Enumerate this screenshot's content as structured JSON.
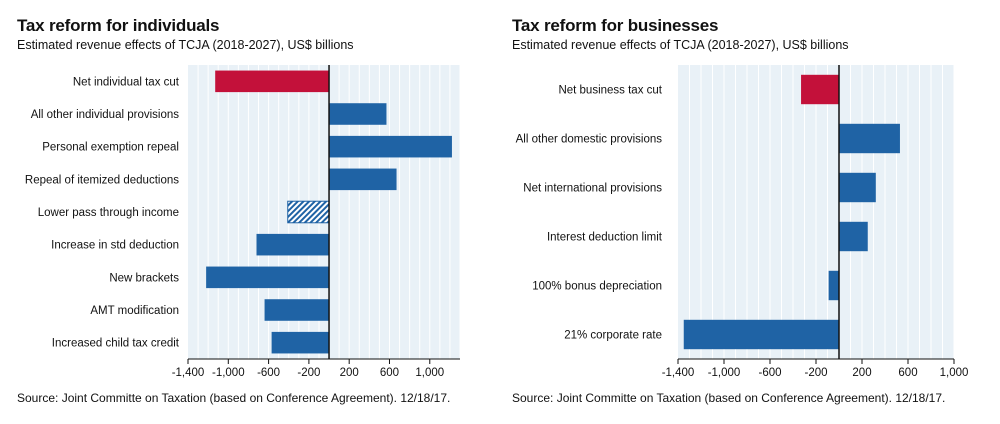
{
  "colors": {
    "bar": "#1f63a5",
    "negative_highlight": "#c3113a",
    "plot_bg": "#e9f1f7",
    "grid": "#ffffff",
    "hatch_bg": "#ffffff"
  },
  "chart_data": [
    {
      "type": "bar",
      "orientation": "horizontal",
      "title": "Tax reform for individuals",
      "subtitle": "Estimated revenue effects of TCJA (2018-2027), US$ billions",
      "source": "Source: Joint Committe on Taxation (based on Conference Agreement). 12/18/17.",
      "categories": [
        "Net individual tax cut",
        "All other individual provisions",
        "Personal exemption repeal",
        "Repeal of itemized deductions",
        "Lower pass through income",
        "Increase in std deduction",
        "New brackets",
        "AMT modification",
        "Increased child tax credit"
      ],
      "values": [
        -1130,
        570,
        1220,
        670,
        -410,
        -720,
        -1220,
        -640,
        -570
      ],
      "bar_styles": [
        "highlight",
        "normal",
        "normal",
        "normal",
        "hatched",
        "normal",
        "normal",
        "normal",
        "normal"
      ],
      "xlim": [
        -1400,
        1300
      ],
      "xticks": [
        -1400,
        -1000,
        -600,
        -200,
        200,
        600,
        1000
      ],
      "xtick_labels": [
        "-1,400",
        "-1,000",
        "-600",
        "-200",
        "200",
        "600",
        "1,000"
      ],
      "grid": true
    },
    {
      "type": "bar",
      "orientation": "horizontal",
      "title": "Tax reform for businesses",
      "subtitle": "Estimated revenue effects of TCJA (2018-2027), US$ billions",
      "source": "Source: Joint Committe on Taxation (based on Conference Agreement). 12/18/17.",
      "categories": [
        "Net business tax cut",
        "All other domestic provisions",
        "Net international provisions",
        "Interest deduction limit",
        "100% bonus depreciation",
        "21% corporate rate"
      ],
      "values": [
        -330,
        530,
        320,
        250,
        -90,
        -1350
      ],
      "bar_styles": [
        "highlight",
        "normal",
        "normal",
        "normal",
        "normal",
        "normal"
      ],
      "xlim": [
        -1400,
        1000
      ],
      "xticks": [
        -1400,
        -1000,
        -600,
        -200,
        200,
        600,
        1000
      ],
      "xtick_labels": [
        "-1,400",
        "-1,000",
        "-600",
        "-200",
        "200",
        "600",
        "1,000"
      ],
      "grid": true
    }
  ]
}
